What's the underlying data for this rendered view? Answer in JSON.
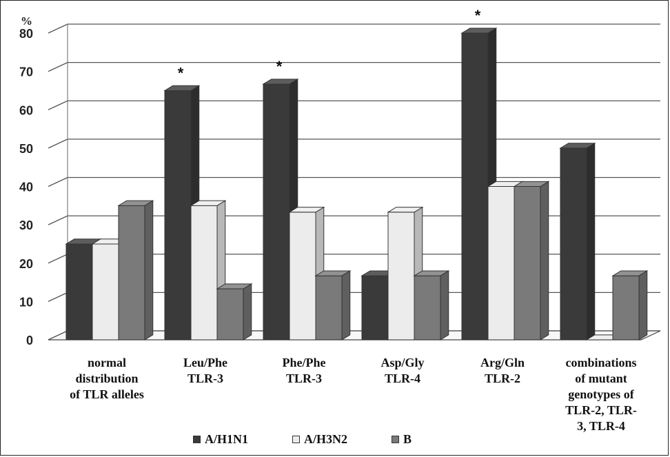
{
  "chart_data": {
    "type": "bar",
    "title": "",
    "xlabel": "",
    "ylabel": "%",
    "ylim": [
      0,
      80
    ],
    "yticks": [
      0,
      10,
      20,
      30,
      40,
      50,
      60,
      70,
      80
    ],
    "grid": true,
    "legend_position": "bottom",
    "categories": [
      [
        "normal",
        "distribution",
        "of TLR alleles"
      ],
      [
        "Leu/Phe",
        "TLR-3"
      ],
      [
        "Phe/Phe",
        "TLR-3"
      ],
      [
        "Asp/Gly",
        "TLR-4"
      ],
      [
        "Arg/Gln",
        "TLR-2"
      ],
      [
        "combinations",
        "of mutant",
        "genotypes of",
        "TLR-2, TLR-",
        "3, TLR-4"
      ]
    ],
    "series": [
      {
        "name": "A/H1N1",
        "color": "#3a3a3a",
        "values": [
          25,
          65,
          66.7,
          16.7,
          80,
          50
        ]
      },
      {
        "name": "A/H3N2",
        "color": "#ececec",
        "values": [
          25,
          35,
          33.3,
          33.3,
          40,
          0
        ]
      },
      {
        "name": "B",
        "color": "#7a7a7a",
        "values": [
          35,
          13.3,
          16.7,
          16.7,
          40,
          16.7
        ]
      }
    ],
    "annotations": [
      {
        "category_index": 1,
        "series_index": 0,
        "text": "*"
      },
      {
        "category_index": 2,
        "series_index": 0,
        "text": "*"
      },
      {
        "category_index": 4,
        "series_index": 0,
        "text": "*"
      }
    ]
  }
}
